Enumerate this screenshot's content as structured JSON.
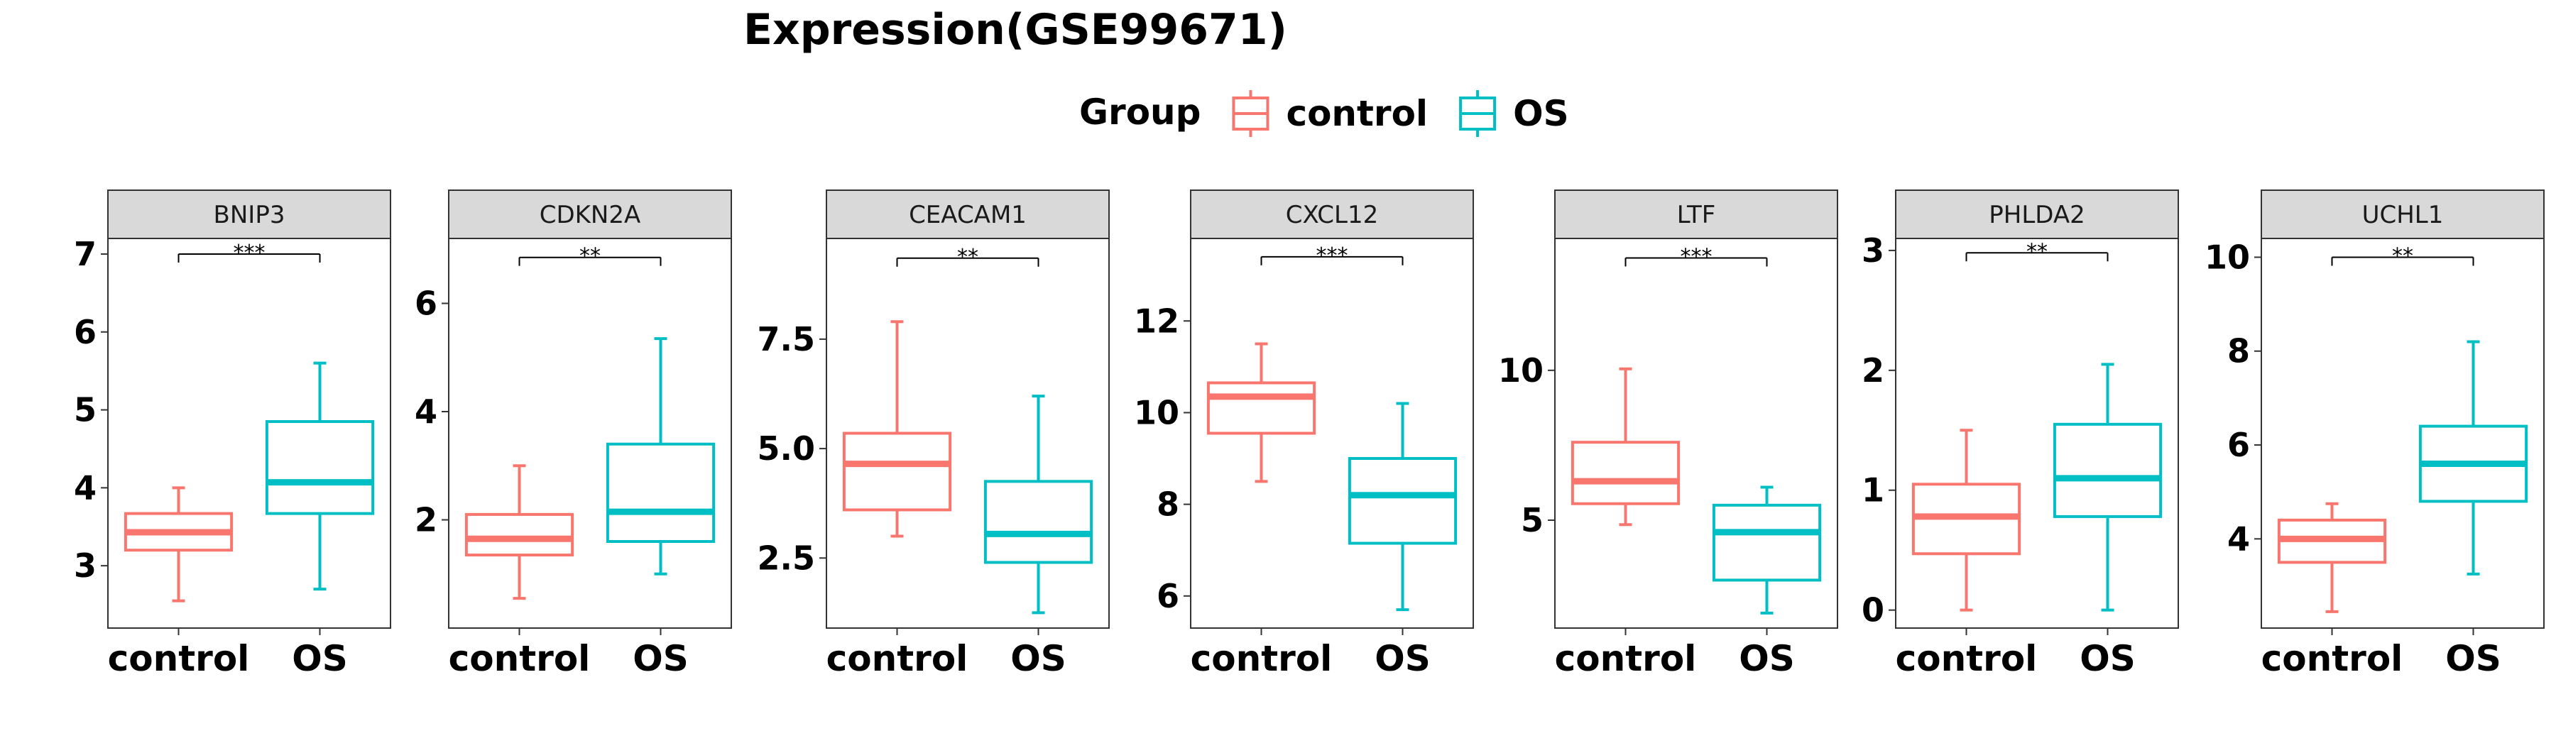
{
  "title": "Expression(GSE99671)",
  "legend": {
    "title": "Group",
    "placement": "top",
    "items": [
      {
        "label": "control",
        "color": "#F8766D"
      },
      {
        "label": "OS",
        "color": "#00BFC4"
      }
    ]
  },
  "chart_data": {
    "type": "boxplot",
    "title": "Expression(GSE99671)",
    "categories": [
      "control",
      "OS"
    ],
    "colors": {
      "control": "#F8766D",
      "OS": "#00BFC4"
    },
    "facets": [
      {
        "name": "BNIP3",
        "ylim": [
          2.2,
          7.2
        ],
        "yticks": [
          {
            "v": 3,
            "label": "3"
          },
          {
            "v": 4,
            "label": "4"
          },
          {
            "v": 5,
            "label": "5"
          },
          {
            "v": 6,
            "label": "6"
          },
          {
            "v": 7,
            "label": "7"
          }
        ],
        "significance": "***",
        "sig_y": 7.0,
        "boxes": [
          {
            "group": "control",
            "min": 2.55,
            "q1": 3.2,
            "median": 3.43,
            "q3": 3.67,
            "max": 4.0
          },
          {
            "group": "OS",
            "min": 2.7,
            "q1": 3.67,
            "median": 4.07,
            "q3": 4.85,
            "max": 5.6
          }
        ]
      },
      {
        "name": "CDKN2A",
        "ylim": [
          0.0,
          7.2
        ],
        "yticks": [
          {
            "v": 2,
            "label": "2"
          },
          {
            "v": 4,
            "label": "4"
          },
          {
            "v": 6,
            "label": "6"
          }
        ],
        "significance": "**",
        "sig_y": 6.85,
        "boxes": [
          {
            "group": "control",
            "min": 0.55,
            "q1": 1.35,
            "median": 1.65,
            "q3": 2.1,
            "max": 3.0
          },
          {
            "group": "OS",
            "min": 1.0,
            "q1": 1.6,
            "median": 2.15,
            "q3": 3.4,
            "max": 5.35
          }
        ]
      },
      {
        "name": "CEACAM1",
        "ylim": [
          0.9,
          9.8
        ],
        "yticks": [
          {
            "v": 2.5,
            "label": "2.5"
          },
          {
            "v": 5.0,
            "label": "5.0"
          },
          {
            "v": 7.5,
            "label": "7.5"
          }
        ],
        "significance": "**",
        "sig_y": 9.35,
        "boxes": [
          {
            "group": "control",
            "min": 3.0,
            "q1": 3.6,
            "median": 4.65,
            "q3": 5.35,
            "max": 7.9
          },
          {
            "group": "OS",
            "min": 1.25,
            "q1": 2.4,
            "median": 3.05,
            "q3": 4.25,
            "max": 6.2
          }
        ]
      },
      {
        "name": "CXCL12",
        "ylim": [
          5.3,
          13.8
        ],
        "yticks": [
          {
            "v": 6,
            "label": "6"
          },
          {
            "v": 8,
            "label": "8"
          },
          {
            "v": 10,
            "label": "10"
          },
          {
            "v": 12,
            "label": "12"
          }
        ],
        "significance": "***",
        "sig_y": 13.4,
        "boxes": [
          {
            "group": "control",
            "min": 8.5,
            "q1": 9.55,
            "median": 10.35,
            "q3": 10.65,
            "max": 11.5
          },
          {
            "group": "OS",
            "min": 5.7,
            "q1": 7.15,
            "median": 8.2,
            "q3": 9.0,
            "max": 10.2
          }
        ]
      },
      {
        "name": "LTF",
        "ylim": [
          1.4,
          14.4
        ],
        "yticks": [
          {
            "v": 5,
            "label": "5"
          },
          {
            "v": 10,
            "label": "10"
          }
        ],
        "significance": "***",
        "sig_y": 13.75,
        "boxes": [
          {
            "group": "control",
            "min": 4.85,
            "q1": 5.55,
            "median": 6.3,
            "q3": 7.6,
            "max": 10.05
          },
          {
            "group": "OS",
            "min": 1.9,
            "q1": 3.0,
            "median": 4.6,
            "q3": 5.5,
            "max": 6.1
          }
        ]
      },
      {
        "name": "PHLDA2",
        "ylim": [
          -0.15,
          3.1
        ],
        "yticks": [
          {
            "v": 0,
            "label": "0"
          },
          {
            "v": 1,
            "label": "1"
          },
          {
            "v": 2,
            "label": "2"
          },
          {
            "v": 3,
            "label": "3"
          }
        ],
        "significance": "**",
        "sig_y": 2.98,
        "boxes": [
          {
            "group": "control",
            "min": 0.0,
            "q1": 0.47,
            "median": 0.78,
            "q3": 1.05,
            "max": 1.5
          },
          {
            "group": "OS",
            "min": 0.0,
            "q1": 0.78,
            "median": 1.1,
            "q3": 1.55,
            "max": 2.05
          }
        ]
      },
      {
        "name": "UCHL1",
        "ylim": [
          2.1,
          10.4
        ],
        "yticks": [
          {
            "v": 4,
            "label": "4"
          },
          {
            "v": 6,
            "label": "6"
          },
          {
            "v": 8,
            "label": "8"
          },
          {
            "v": 10,
            "label": "10"
          }
        ],
        "significance": "**",
        "sig_y": 10.0,
        "boxes": [
          {
            "group": "control",
            "min": 2.45,
            "q1": 3.5,
            "median": 4.0,
            "q3": 4.4,
            "max": 4.75
          },
          {
            "group": "OS",
            "min": 3.25,
            "q1": 4.8,
            "median": 5.6,
            "q3": 6.4,
            "max": 8.2
          }
        ]
      }
    ]
  }
}
